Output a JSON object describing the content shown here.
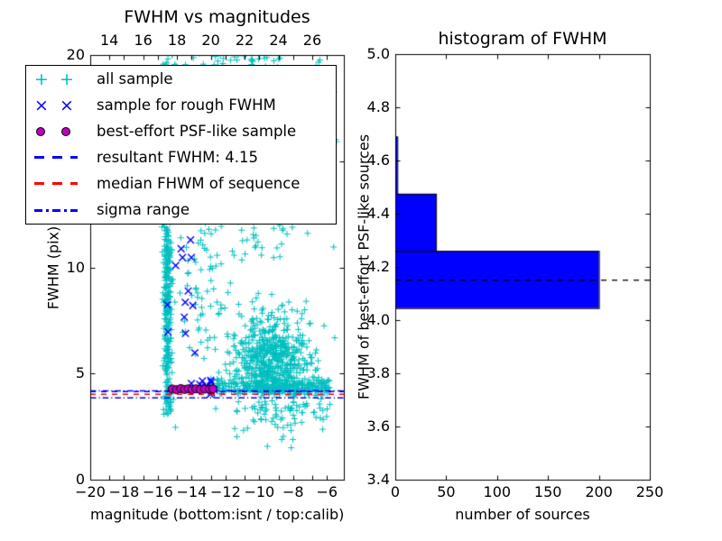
{
  "palette": {
    "cyan": "#00bfbf",
    "blue": "#0000ff",
    "magenta": "#bf00bf",
    "red": "#ff0000",
    "black": "#000000",
    "bar_fill": "#0000ff",
    "background": "#ffffff"
  },
  "legend": {
    "glyphs": {
      "plus": "+",
      "x": "×"
    },
    "items": [
      {
        "label": "all sample",
        "marker": "plus",
        "color": "#00bfbf"
      },
      {
        "label": "sample for rough FWHM",
        "marker": "x",
        "color": "#0000ff"
      },
      {
        "label": "best-effort PSF-like sample",
        "marker": "circle",
        "color": "#bf00bf"
      },
      {
        "label": "resultant FWHM: 4.15",
        "marker": "dashed",
        "color": "#0000ff"
      },
      {
        "label": "median FHWM of sequence",
        "marker": "dashed",
        "color": "#ff0000"
      },
      {
        "label": "sigma range",
        "marker": "dashdot",
        "color": "#0000ff"
      }
    ]
  },
  "chart_data": [
    {
      "type": "scatter",
      "title": "FWHM vs magnitudes",
      "xlabel": "magnitude (bottom:isnt / top:calib)",
      "ylabel": "FWHM (pix)",
      "xlim": [
        -20,
        -5
      ],
      "ylim": [
        0,
        20
      ],
      "x_ticks": [
        -20,
        -18,
        -16,
        -14,
        -12,
        -10,
        -8,
        -6
      ],
      "y_ticks": [
        0,
        5,
        10,
        15,
        20
      ],
      "top_axis_ticks": [
        14,
        16,
        18,
        20,
        22,
        24,
        26
      ],
      "top_axis_offset": 32.87,
      "grid": false,
      "legend_position": "upper left",
      "seed": 42,
      "series": [
        {
          "name": "all sample",
          "marker": "plus",
          "color": "#00bfbf",
          "clusters": [
            {
              "n": 320,
              "mag": [
                "normal",
                -15.42,
                0.13,
                -15.78,
                -15.02
              ],
              "fwhm": [
                "uniform",
                3.1,
                14.0
              ]
            },
            {
              "n": 70,
              "mag": [
                "normal",
                -15.42,
                0.16,
                -15.8,
                -15.0
              ],
              "fwhm": [
                "uniform",
                14.0,
                20.2
              ]
            },
            {
              "n": 130,
              "mag": [
                "normal",
                -13.2,
                0.9,
                -15.0,
                -11.2
              ],
              "fwhm": [
                "uniform",
                5.5,
                20.0
              ]
            },
            {
              "n": 210,
              "mag": [
                "normal",
                -9.7,
                1.05,
                -12.4,
                -6.7
              ],
              "fwhm": [
                "normal",
                15.5,
                3.2,
                10.2,
                20.3
              ]
            },
            {
              "n": 560,
              "mag": [
                "normal",
                -9.2,
                1.15,
                -12.6,
                -6.1
              ],
              "fwhm": [
                "normal",
                5.4,
                1.2,
                4.05,
                10.3
              ]
            },
            {
              "n": 260,
              "mag": [
                "uniform",
                -13.0,
                -5.8
              ],
              "fwhm": [
                "normal",
                4.38,
                0.2,
                3.95,
                5.0
              ]
            },
            {
              "n": 90,
              "mag": [
                "normal",
                -8.6,
                1.3,
                -11.6,
                -5.7
              ],
              "fwhm": [
                "normal",
                3.5,
                0.7,
                1.4,
                4.2
              ]
            },
            {
              "n": 70,
              "mag": [
                "uniform",
                -15.9,
                -5.3
              ],
              "fwhm": [
                "uniform",
                1.8,
                20.2
              ]
            },
            {
              "n": 25,
              "mag": [
                "uniform",
                -15.7,
                -6.4
              ],
              "fwhm": [
                "uniform",
                19.4,
                20.2
              ]
            }
          ]
        },
        {
          "name": "sample for rough FWHM",
          "marker": "x",
          "color": "#0000ff",
          "clusters": [
            {
              "n": 13,
              "mag": [
                "normal",
                -14.5,
                0.65,
                -15.5,
                -13.2
              ],
              "fwhm": [
                "normal",
                8.6,
                1.9,
                5.3,
                11.9
              ]
            },
            {
              "n": 11,
              "mag": [
                "uniform",
                -14.3,
                -12.4
              ],
              "fwhm": [
                "normal",
                4.4,
                0.18,
                4.0,
                4.9
              ]
            }
          ]
        },
        {
          "name": "best-effort PSF-like sample",
          "marker": "circle",
          "color": "#bf00bf",
          "edge_color": "#000000",
          "points": [
            [
              -15.15,
              4.27
            ],
            [
              -14.9,
              4.24
            ],
            [
              -14.65,
              4.29
            ],
            [
              -14.42,
              4.25
            ],
            [
              -14.2,
              4.28
            ],
            [
              -13.98,
              4.24
            ],
            [
              -13.75,
              4.28
            ],
            [
              -13.5,
              4.25
            ],
            [
              -13.22,
              4.27
            ],
            [
              -12.95,
              4.26
            ],
            [
              -12.75,
              4.28
            ]
          ]
        }
      ],
      "lines": [
        {
          "label": "resultant FWHM: 4.15",
          "y": [
            4.15
          ],
          "style": "dashed",
          "color": "#0000ff"
        },
        {
          "label": "median FHWM of sequence",
          "y": [
            4.02
          ],
          "style": "dashed",
          "color": "#ff0000"
        },
        {
          "label": "sigma range",
          "y": [
            4.18,
            3.85
          ],
          "style": "dashdot",
          "color": "#0000ff"
        }
      ]
    },
    {
      "type": "bar",
      "orientation": "horizontal",
      "title": "histogram of FWHM",
      "xlabel": "number of sources",
      "ylabel": "FWHM of best-effort PSF-like sources",
      "xlim": [
        0,
        250
      ],
      "ylim": [
        3.4,
        5.0
      ],
      "x_ticks": [
        0,
        50,
        100,
        150,
        200,
        250
      ],
      "y_ticks": [
        3.4,
        3.6,
        3.8,
        4.0,
        4.2,
        4.4,
        4.6,
        4.8,
        5.0
      ],
      "grid": false,
      "bar_color": "#0000ff",
      "bar_edge_color": "#000000",
      "bars": [
        {
          "fwhm_from": 4.045,
          "fwhm_to": 4.26,
          "count": 200
        },
        {
          "fwhm_from": 4.26,
          "fwhm_to": 4.475,
          "count": 40
        },
        {
          "fwhm_from": 4.475,
          "fwhm_to": 4.69,
          "count": 2
        }
      ],
      "marker_line": {
        "value": 4.15,
        "style": "dashed",
        "color": "#000000"
      }
    }
  ]
}
